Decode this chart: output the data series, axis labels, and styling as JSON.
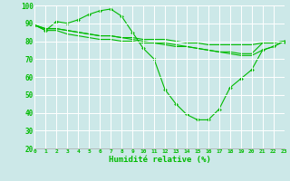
{
  "xlabel": "Humidité relative (%)",
  "bg_color": "#cce8e8",
  "grid_color": "#ffffff",
  "line_color": "#00bb00",
  "x": [
    0,
    1,
    2,
    3,
    4,
    5,
    6,
    7,
    8,
    9,
    10,
    11,
    12,
    13,
    14,
    15,
    16,
    17,
    18,
    19,
    20,
    21,
    22,
    23
  ],
  "series1": [
    89,
    86,
    91,
    90,
    92,
    95,
    97,
    98,
    94,
    85,
    76,
    70,
    53,
    45,
    39,
    36,
    36,
    42,
    54,
    59,
    64,
    75,
    77,
    80
  ],
  "series2": [
    89,
    86,
    86,
    84,
    83,
    82,
    81,
    81,
    80,
    80,
    79,
    79,
    78,
    77,
    77,
    76,
    75,
    74,
    74,
    73,
    73,
    79,
    79,
    80
  ],
  "series3": [
    89,
    87,
    87,
    86,
    85,
    84,
    83,
    83,
    82,
    82,
    81,
    81,
    81,
    80,
    79,
    79,
    78,
    78,
    78,
    78,
    78,
    79,
    79,
    80
  ],
  "series4": [
    89,
    87,
    87,
    86,
    85,
    84,
    83,
    83,
    82,
    81,
    80,
    79,
    79,
    78,
    77,
    76,
    75,
    74,
    73,
    72,
    72,
    75,
    77,
    80
  ],
  "ylim": [
    20,
    100
  ],
  "yticks": [
    20,
    30,
    40,
    50,
    60,
    70,
    80,
    90,
    100
  ],
  "xlim": [
    0,
    23
  ],
  "xtick_fontsize": 4.5,
  "ytick_fontsize": 5.5,
  "xlabel_fontsize": 6.5,
  "marker_size": 2.0,
  "linewidth": 0.8
}
